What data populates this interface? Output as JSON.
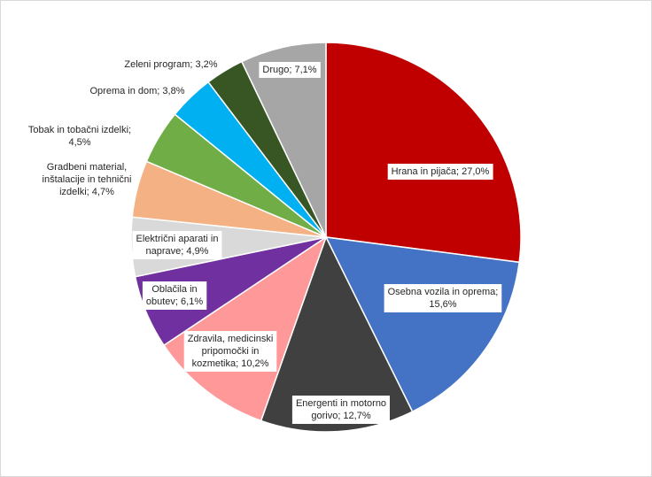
{
  "chart_data": {
    "type": "pie",
    "title": "",
    "slices": [
      {
        "label_lines": [
          "Hrana in pijača; 27,0%"
        ],
        "value": 27.0,
        "color": "#c00000",
        "label_box": true
      },
      {
        "label_lines": [
          "Osebna vozila in oprema;",
          "15,6%"
        ],
        "value": 15.6,
        "color": "#4472c4",
        "label_box": true
      },
      {
        "label_lines": [
          "Energenti in motorno",
          "gorivo; 12,7%"
        ],
        "value": 12.7,
        "color": "#404040",
        "label_box": true
      },
      {
        "label_lines": [
          "Zdravila, medicinski",
          "pripomočki in",
          "kozmetika; 10,2%"
        ],
        "value": 10.2,
        "color": "#ff9999",
        "label_box": true
      },
      {
        "label_lines": [
          "Oblačila in",
          "obutev; 6,1%"
        ],
        "value": 6.1,
        "color": "#7030a0",
        "label_box": true
      },
      {
        "label_lines": [
          "Električni aparati in",
          "naprave; 4,9%"
        ],
        "value": 4.9,
        "color": "#d9d9d9",
        "label_box": true
      },
      {
        "label_lines": [
          "Gradbeni material,",
          "inštalacije in tehnični",
          "izdelki; 4,7%"
        ],
        "value": 4.7,
        "color": "#f4b183",
        "label_box": false
      },
      {
        "label_lines": [
          "Tobak in tobačni izdelki;",
          "4,5%"
        ],
        "value": 4.5,
        "color": "#70ad47",
        "label_box": false
      },
      {
        "label_lines": [
          "Oprema in dom; 3,8%"
        ],
        "value": 3.8,
        "color": "#00b0f0",
        "label_box": false
      },
      {
        "label_lines": [
          "Zeleni program; 3,2%"
        ],
        "value": 3.2,
        "color": "#375623",
        "label_box": false
      },
      {
        "label_lines": [
          "Drugo; 7,1%"
        ],
        "value": 7.1,
        "color": "#a6a6a6",
        "label_box": true
      }
    ]
  }
}
